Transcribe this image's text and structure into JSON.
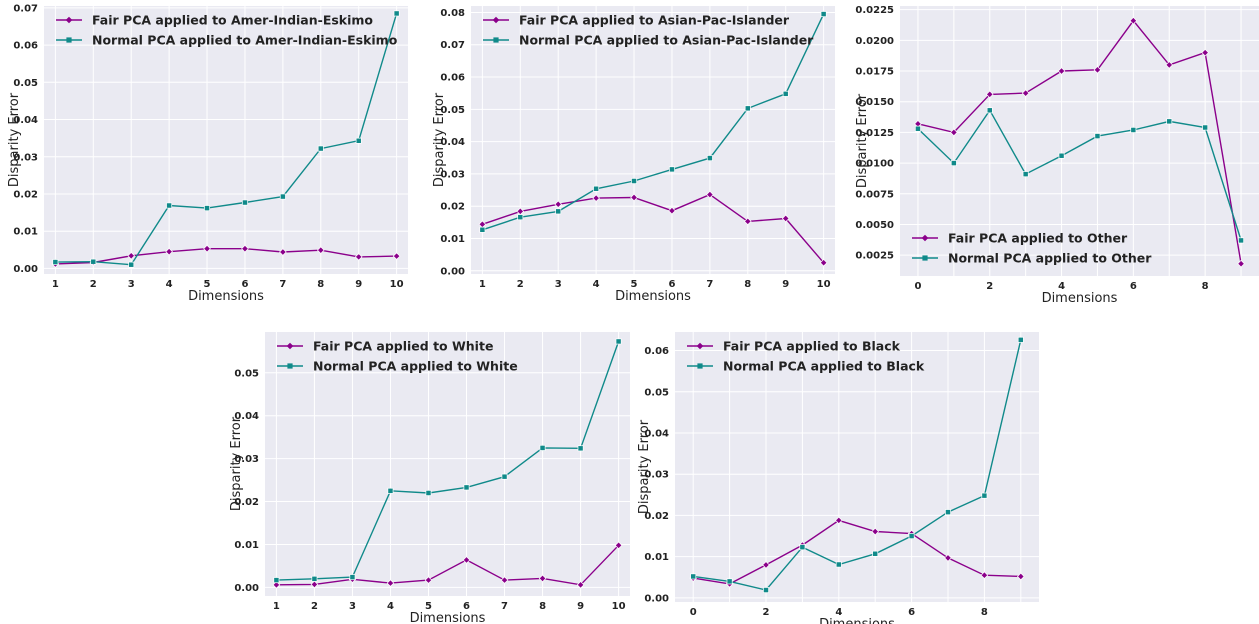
{
  "colors": {
    "fair": "#8b008b",
    "normal": "#108a8a",
    "plot_bg": "#eaeaf2"
  },
  "chart_data": [
    {
      "type": "line",
      "xlabel": "Dimensions",
      "ylabel": "Disparity Error",
      "x": [
        1,
        2,
        3,
        4,
        5,
        6,
        7,
        8,
        9,
        10
      ],
      "xticks": [
        "1",
        "2",
        "3",
        "4",
        "5",
        "6",
        "7",
        "8",
        "9",
        "10"
      ],
      "xlim": [
        0.7,
        10.3
      ],
      "ylim": [
        -0.0015,
        0.0705
      ],
      "yticks": [
        "0.00",
        "0.01",
        "0.02",
        "0.03",
        "0.04",
        "0.05",
        "0.06",
        "0.07"
      ],
      "legend_position": "top-left",
      "series": [
        {
          "name": "Fair PCA applied to Amer-Indian-Eskimo",
          "marker": "diamond",
          "values": [
            0.0012,
            0.0016,
            0.0034,
            0.0045,
            0.0053,
            0.0053,
            0.0044,
            0.0049,
            0.0031,
            0.0033
          ]
        },
        {
          "name": "Normal PCA applied to Amer-Indian-Eskimo",
          "marker": "square",
          "values": [
            0.0017,
            0.0018,
            0.001,
            0.0169,
            0.0162,
            0.0177,
            0.0193,
            0.0322,
            0.0343,
            0.0685
          ]
        }
      ]
    },
    {
      "type": "line",
      "xlabel": "Dimensions",
      "ylabel": "Disparity Error",
      "x": [
        1,
        2,
        3,
        4,
        5,
        6,
        7,
        8,
        9,
        10
      ],
      "xticks": [
        "1",
        "2",
        "3",
        "4",
        "5",
        "6",
        "7",
        "8",
        "9",
        "10"
      ],
      "xlim": [
        0.7,
        10.3
      ],
      "ylim": [
        -0.001,
        0.082
      ],
      "yticks": [
        "0.00",
        "0.01",
        "0.02",
        "0.03",
        "0.04",
        "0.05",
        "0.06",
        "0.07",
        "0.08"
      ],
      "legend_position": "top-left",
      "series": [
        {
          "name": "Fair PCA applied to Asian-Pac-Islander",
          "marker": "diamond",
          "values": [
            0.0144,
            0.0184,
            0.0206,
            0.0225,
            0.0227,
            0.0186,
            0.0236,
            0.0153,
            0.0162,
            0.0025
          ]
        },
        {
          "name": "Normal PCA applied to Asian-Pac-Islander",
          "marker": "square",
          "values": [
            0.0127,
            0.0166,
            0.0184,
            0.0254,
            0.0278,
            0.0314,
            0.0349,
            0.0503,
            0.0548,
            0.0795
          ]
        }
      ]
    },
    {
      "type": "line",
      "xlabel": "Dimensions",
      "ylabel": "Disparity Error",
      "x": [
        0,
        1,
        2,
        3,
        4,
        5,
        6,
        7,
        8,
        9
      ],
      "xticks": [
        "0",
        "",
        "2",
        "",
        "4",
        "",
        "6",
        "",
        "8",
        ""
      ],
      "xlim": [
        -0.5,
        9.5
      ],
      "ylim": [
        0.0008,
        0.0228
      ],
      "yticks": [
        "0.0025",
        "0.0050",
        "0.0075",
        "0.0100",
        "0.0125",
        "0.0150",
        "0.0175",
        "0.0200",
        "0.0225"
      ],
      "legend_position": "bottom-left",
      "series": [
        {
          "name": "Fair PCA applied to Other",
          "marker": "diamond",
          "values": [
            0.0132,
            0.0125,
            0.0156,
            0.0157,
            0.0175,
            0.0176,
            0.0216,
            0.018,
            0.019,
            0.0018
          ]
        },
        {
          "name": "Normal PCA applied to Other",
          "marker": "square",
          "values": [
            0.0128,
            0.01,
            0.0143,
            0.0091,
            0.0106,
            0.0122,
            0.0127,
            0.0134,
            0.0129,
            0.0037
          ]
        }
      ]
    },
    {
      "type": "line",
      "xlabel": "Dimensions",
      "ylabel": "Disparity Error",
      "x": [
        1,
        2,
        3,
        4,
        5,
        6,
        7,
        8,
        9,
        10
      ],
      "xticks": [
        "1",
        "2",
        "3",
        "4",
        "5",
        "6",
        "7",
        "8",
        "9",
        "10"
      ],
      "xlim": [
        0.7,
        10.3
      ],
      "ylim": [
        -0.002,
        0.0595
      ],
      "yticks": [
        "0.00",
        "0.01",
        "0.02",
        "0.03",
        "0.04",
        "0.05"
      ],
      "legend_position": "top-left",
      "series": [
        {
          "name": "Fair PCA applied to White",
          "marker": "diamond",
          "values": [
            0.0006,
            0.0007,
            0.0019,
            0.001,
            0.0017,
            0.0064,
            0.0017,
            0.0021,
            0.0006,
            0.0098
          ]
        },
        {
          "name": "Normal PCA applied to White",
          "marker": "square",
          "values": [
            0.0017,
            0.002,
            0.0024,
            0.0225,
            0.022,
            0.0233,
            0.0258,
            0.0325,
            0.0324,
            0.0573
          ]
        }
      ]
    },
    {
      "type": "line",
      "xlabel": "Dimensions",
      "ylabel": "Disparity Error",
      "x": [
        0,
        1,
        2,
        3,
        4,
        5,
        6,
        7,
        8,
        9
      ],
      "xticks": [
        "0",
        "",
        "2",
        "",
        "4",
        "",
        "6",
        "",
        "8",
        ""
      ],
      "xlim": [
        -0.5,
        9.5
      ],
      "ylim": [
        -0.001,
        0.0645
      ],
      "yticks": [
        "0.00",
        "0.01",
        "0.02",
        "0.03",
        "0.04",
        "0.05",
        "0.06"
      ],
      "legend_position": "top-left",
      "series": [
        {
          "name": "Fair PCA applied to Black",
          "marker": "diamond",
          "values": [
            0.0048,
            0.0034,
            0.008,
            0.0128,
            0.0188,
            0.0161,
            0.0156,
            0.0097,
            0.0055,
            0.0052
          ]
        },
        {
          "name": "Normal PCA applied to Black",
          "marker": "square",
          "values": [
            0.0052,
            0.004,
            0.0019,
            0.0123,
            0.0081,
            0.0107,
            0.015,
            0.0208,
            0.0248,
            0.0626
          ]
        }
      ]
    }
  ]
}
